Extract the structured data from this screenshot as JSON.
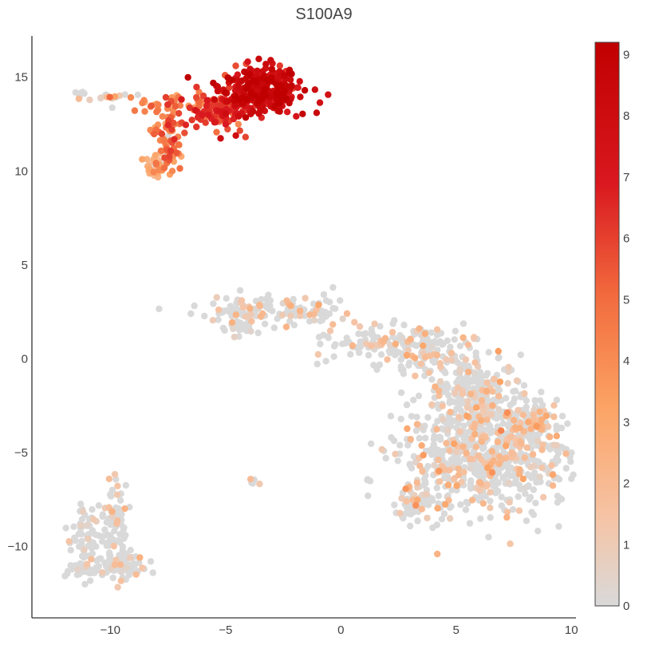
{
  "chart_data": {
    "type": "scatter",
    "title": "S100A9",
    "xlabel": "",
    "ylabel": "",
    "xlim": [
      -13.4,
      10.2
    ],
    "ylim": [
      -13.8,
      17.2
    ],
    "x_ticks": [
      {
        "value": -10,
        "label": "−10"
      },
      {
        "value": -5,
        "label": "−5"
      },
      {
        "value": 0,
        "label": "0"
      },
      {
        "value": 5,
        "label": "5"
      },
      {
        "value": 10,
        "label": "10"
      }
    ],
    "y_ticks": [
      {
        "value": -10,
        "label": "−10"
      },
      {
        "value": -5,
        "label": "−5"
      },
      {
        "value": 0,
        "label": "0"
      },
      {
        "value": 5,
        "label": "5"
      },
      {
        "value": 10,
        "label": "10"
      },
      {
        "value": 15,
        "label": "15"
      }
    ],
    "grid": false,
    "colorbar": {
      "range": [
        0,
        9.2
      ],
      "ticks": [
        {
          "value": 0,
          "label": "0"
        },
        {
          "value": 1,
          "label": "1"
        },
        {
          "value": 2,
          "label": "2"
        },
        {
          "value": 3,
          "label": "3"
        },
        {
          "value": 4,
          "label": "4"
        },
        {
          "value": 5,
          "label": "5"
        },
        {
          "value": 6,
          "label": "6"
        },
        {
          "value": 7,
          "label": "7"
        },
        {
          "value": 8,
          "label": "8"
        },
        {
          "value": 9,
          "label": "9"
        }
      ],
      "colorscale": [
        [
          0.0,
          "#d9d9d9"
        ],
        [
          0.15,
          "#f5c5a8"
        ],
        [
          0.35,
          "#fca466"
        ],
        [
          0.55,
          "#f26b3e"
        ],
        [
          0.75,
          "#d9181f"
        ],
        [
          1.0,
          "#c00000"
        ]
      ]
    },
    "marker_color_low": "#d9d9d9",
    "clusters": [
      {
        "center": [
          -3.5,
          14.3
        ],
        "spread": [
          0.9,
          0.6
        ],
        "count": 320,
        "value_mean": 8.0,
        "value_sd": 1.0,
        "express_frac": 1.0
      },
      {
        "center": [
          -5.2,
          13.2
        ],
        "spread": [
          0.8,
          0.5
        ],
        "count": 110,
        "value_mean": 6.0,
        "value_sd": 0.9,
        "express_frac": 1.0
      },
      {
        "center": [
          -7.5,
          11.8
        ],
        "spread": [
          0.35,
          0.9
        ],
        "count": 70,
        "value_mean": 4.5,
        "value_sd": 1.0,
        "express_frac": 0.95
      },
      {
        "center": [
          -8.1,
          10.2
        ],
        "spread": [
          0.3,
          0.4
        ],
        "count": 30,
        "value_mean": 2.8,
        "value_sd": 0.8,
        "express_frac": 0.9
      },
      {
        "center": [
          -7.4,
          13.6
        ],
        "spread": [
          1.0,
          0.2
        ],
        "count": 35,
        "value_mean": 4.2,
        "value_sd": 0.8,
        "express_frac": 0.9
      },
      {
        "center": [
          -10.0,
          14.0
        ],
        "spread": [
          0.8,
          0.12
        ],
        "count": 14,
        "value_mean": 1.5,
        "value_sd": 1.0,
        "express_frac": 0.4
      },
      {
        "center": [
          -11.4,
          14.1
        ],
        "spread": [
          0.15,
          0.15
        ],
        "count": 5,
        "value_mean": 0.3,
        "value_sd": 0.2,
        "express_frac": 0.0
      },
      {
        "center": [
          -4.5,
          2.6
        ],
        "spread": [
          0.9,
          0.4
        ],
        "count": 60,
        "value_mean": 1.2,
        "value_sd": 0.7,
        "express_frac": 0.25
      },
      {
        "center": [
          -1.8,
          2.5
        ],
        "spread": [
          1.2,
          0.4
        ],
        "count": 70,
        "value_mean": 1.4,
        "value_sd": 0.8,
        "express_frac": 0.3
      },
      {
        "center": [
          -4.4,
          1.6
        ],
        "spread": [
          0.3,
          0.3
        ],
        "count": 25,
        "value_mean": 1.0,
        "value_sd": 0.6,
        "express_frac": 0.2
      },
      {
        "center": [
          1.5,
          0.9
        ],
        "spread": [
          1.3,
          0.5
        ],
        "count": 90,
        "value_mean": 1.4,
        "value_sd": 0.8,
        "express_frac": 0.25
      },
      {
        "center": [
          3.8,
          0.3
        ],
        "spread": [
          1.0,
          0.7
        ],
        "count": 120,
        "value_mean": 1.4,
        "value_sd": 0.8,
        "express_frac": 0.25
      },
      {
        "center": [
          5.8,
          -1.8
        ],
        "spread": [
          1.0,
          1.0
        ],
        "count": 220,
        "value_mean": 1.5,
        "value_sd": 0.9,
        "express_frac": 0.25
      },
      {
        "center": [
          6.2,
          -5.3
        ],
        "spread": [
          1.8,
          1.5
        ],
        "count": 700,
        "value_mean": 1.5,
        "value_sd": 0.9,
        "express_frac": 0.28
      },
      {
        "center": [
          8.2,
          -3.4
        ],
        "spread": [
          0.6,
          0.6
        ],
        "count": 90,
        "value_mean": 2.0,
        "value_sd": 1.0,
        "express_frac": 0.4
      },
      {
        "center": [
          3.2,
          -7.6
        ],
        "spread": [
          0.35,
          0.6
        ],
        "count": 45,
        "value_mean": 1.2,
        "value_sd": 0.6,
        "express_frac": 0.25
      },
      {
        "center": [
          1.2,
          -6.5
        ],
        "spread": [
          0.08,
          0.05
        ],
        "count": 4,
        "value_mean": 0.2,
        "value_sd": 0.1,
        "express_frac": 0.0
      },
      {
        "center": [
          -3.8,
          -6.5
        ],
        "spread": [
          0.1,
          0.08
        ],
        "count": 6,
        "value_mean": 1.2,
        "value_sd": 0.5,
        "express_frac": 0.5
      },
      {
        "center": [
          -9.8,
          -8.4
        ],
        "spread": [
          0.25,
          1.0
        ],
        "count": 70,
        "value_mean": 1.0,
        "value_sd": 0.7,
        "express_frac": 0.2
      },
      {
        "center": [
          -11.0,
          -9.6
        ],
        "spread": [
          0.4,
          1.0
        ],
        "count": 70,
        "value_mean": 1.0,
        "value_sd": 0.7,
        "express_frac": 0.2
      },
      {
        "center": [
          -9.6,
          -11.0
        ],
        "spread": [
          0.6,
          0.4
        ],
        "count": 70,
        "value_mean": 1.0,
        "value_sd": 0.7,
        "express_frac": 0.2
      },
      {
        "center": [
          -10.8,
          -11.3
        ],
        "spread": [
          0.4,
          0.2
        ],
        "count": 30,
        "value_mean": 1.0,
        "value_sd": 0.7,
        "express_frac": 0.2
      }
    ]
  }
}
